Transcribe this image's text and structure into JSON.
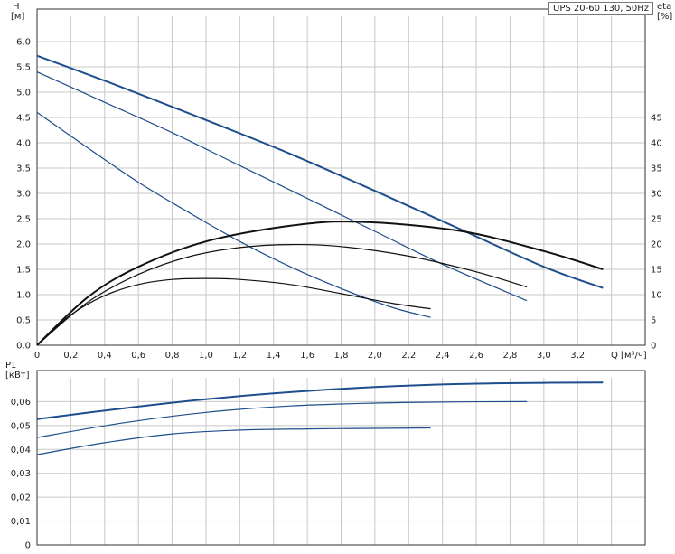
{
  "legend": "UPS 20-60 130, 50Hz",
  "colors": {
    "pump_curve": "#1f4e8c",
    "efficiency_curve": "#111111",
    "grid": "#c8c8c8",
    "axis": "#333333"
  },
  "chart_data": [
    {
      "type": "line",
      "title": "",
      "xlabel": "Q [м³/ч]",
      "ylabel": "H [м]",
      "y2label": "eta [%]",
      "xlim": [
        0,
        3.6
      ],
      "ylim": [
        0,
        6.5
      ],
      "y2lim": [
        0,
        65
      ],
      "x_ticks": [
        "0",
        "0,2",
        "0,4",
        "0,6",
        "0,8",
        "1,0",
        "1,2",
        "1,4",
        "1,6",
        "1,8",
        "2,0",
        "2,2",
        "2,4",
        "2,6",
        "2,8",
        "3,0",
        "3,2"
      ],
      "y_ticks": [
        "0.0",
        "0.5",
        "1.0",
        "1.5",
        "2.0",
        "2.5",
        "3.0",
        "3.5",
        "4.0",
        "4.5",
        "5.0",
        "5.5",
        "6.0"
      ],
      "y2_ticks": [
        "0",
        "5",
        "10",
        "15",
        "20",
        "25",
        "30",
        "35",
        "40",
        "45"
      ],
      "grid": true,
      "series": [
        {
          "kind": "head",
          "axis": "y",
          "x": [
            0,
            0.5,
            1.0,
            1.5,
            2.0,
            2.5,
            3.0,
            3.35
          ],
          "y": [
            5.72,
            5.1,
            4.45,
            3.78,
            3.05,
            2.3,
            1.55,
            1.13
          ]
        },
        {
          "kind": "head",
          "axis": "y",
          "x": [
            0,
            0.4,
            0.8,
            1.2,
            1.6,
            2.0,
            2.4,
            2.9
          ],
          "y": [
            5.4,
            4.8,
            4.2,
            3.55,
            2.9,
            2.25,
            1.6,
            0.88
          ]
        },
        {
          "kind": "head",
          "axis": "y",
          "x": [
            0,
            0.3,
            0.6,
            0.9,
            1.2,
            1.5,
            1.8,
            2.1,
            2.33
          ],
          "y": [
            4.6,
            3.9,
            3.22,
            2.62,
            2.05,
            1.55,
            1.12,
            0.75,
            0.55
          ]
        },
        {
          "kind": "eta",
          "axis": "y2",
          "x": [
            0,
            0.3,
            0.6,
            1.0,
            1.5,
            1.9,
            2.5,
            3.0,
            3.35
          ],
          "y": [
            0,
            9.5,
            15.5,
            20.5,
            23.6,
            24.4,
            22.6,
            18.6,
            15.0
          ]
        },
        {
          "kind": "eta",
          "axis": "y2",
          "x": [
            0,
            0.3,
            0.6,
            0.9,
            1.2,
            1.5,
            1.8,
            2.2,
            2.6,
            2.9
          ],
          "y": [
            0,
            8.5,
            14.0,
            17.5,
            19.3,
            19.9,
            19.5,
            17.6,
            14.5,
            11.5
          ]
        },
        {
          "kind": "eta",
          "axis": "y2",
          "x": [
            0,
            0.2,
            0.4,
            0.6,
            0.8,
            1.0,
            1.2,
            1.5,
            1.8,
            2.1,
            2.33
          ],
          "y": [
            0,
            6.0,
            9.8,
            12.0,
            13.0,
            13.2,
            13.0,
            12.0,
            10.2,
            8.3,
            7.2
          ]
        }
      ]
    },
    {
      "type": "line",
      "title": "",
      "xlabel": "",
      "ylabel": "P1 [кВт]",
      "xlim": [
        0,
        3.6
      ],
      "ylim": [
        0,
        0.07
      ],
      "y_ticks": [
        "0",
        "0,01",
        "0,02",
        "0,03",
        "0,04",
        "0,05",
        "0,06"
      ],
      "grid": true,
      "series": [
        {
          "kind": "power",
          "x": [
            0,
            0.5,
            1.0,
            1.5,
            2.0,
            2.5,
            3.0,
            3.35
          ],
          "y": [
            0.0527,
            0.0571,
            0.061,
            0.064,
            0.0661,
            0.0674,
            0.0679,
            0.068
          ]
        },
        {
          "kind": "power",
          "x": [
            0,
            0.5,
            1.0,
            1.5,
            2.0,
            2.5,
            2.9
          ],
          "y": [
            0.045,
            0.051,
            0.0555,
            0.0582,
            0.0594,
            0.0599,
            0.06
          ]
        },
        {
          "kind": "power",
          "x": [
            0,
            0.4,
            0.8,
            1.2,
            1.6,
            2.0,
            2.33
          ],
          "y": [
            0.0378,
            0.0428,
            0.0465,
            0.0481,
            0.0486,
            0.0488,
            0.049
          ]
        }
      ]
    }
  ],
  "top_axis": {
    "y_title_1": "H",
    "y_title_2": "[м]",
    "y2_title_1": "eta",
    "y2_title_2": "[%]"
  },
  "bottom_axis": {
    "y_title_1": "P1",
    "y_title_2": "[кВт]"
  }
}
